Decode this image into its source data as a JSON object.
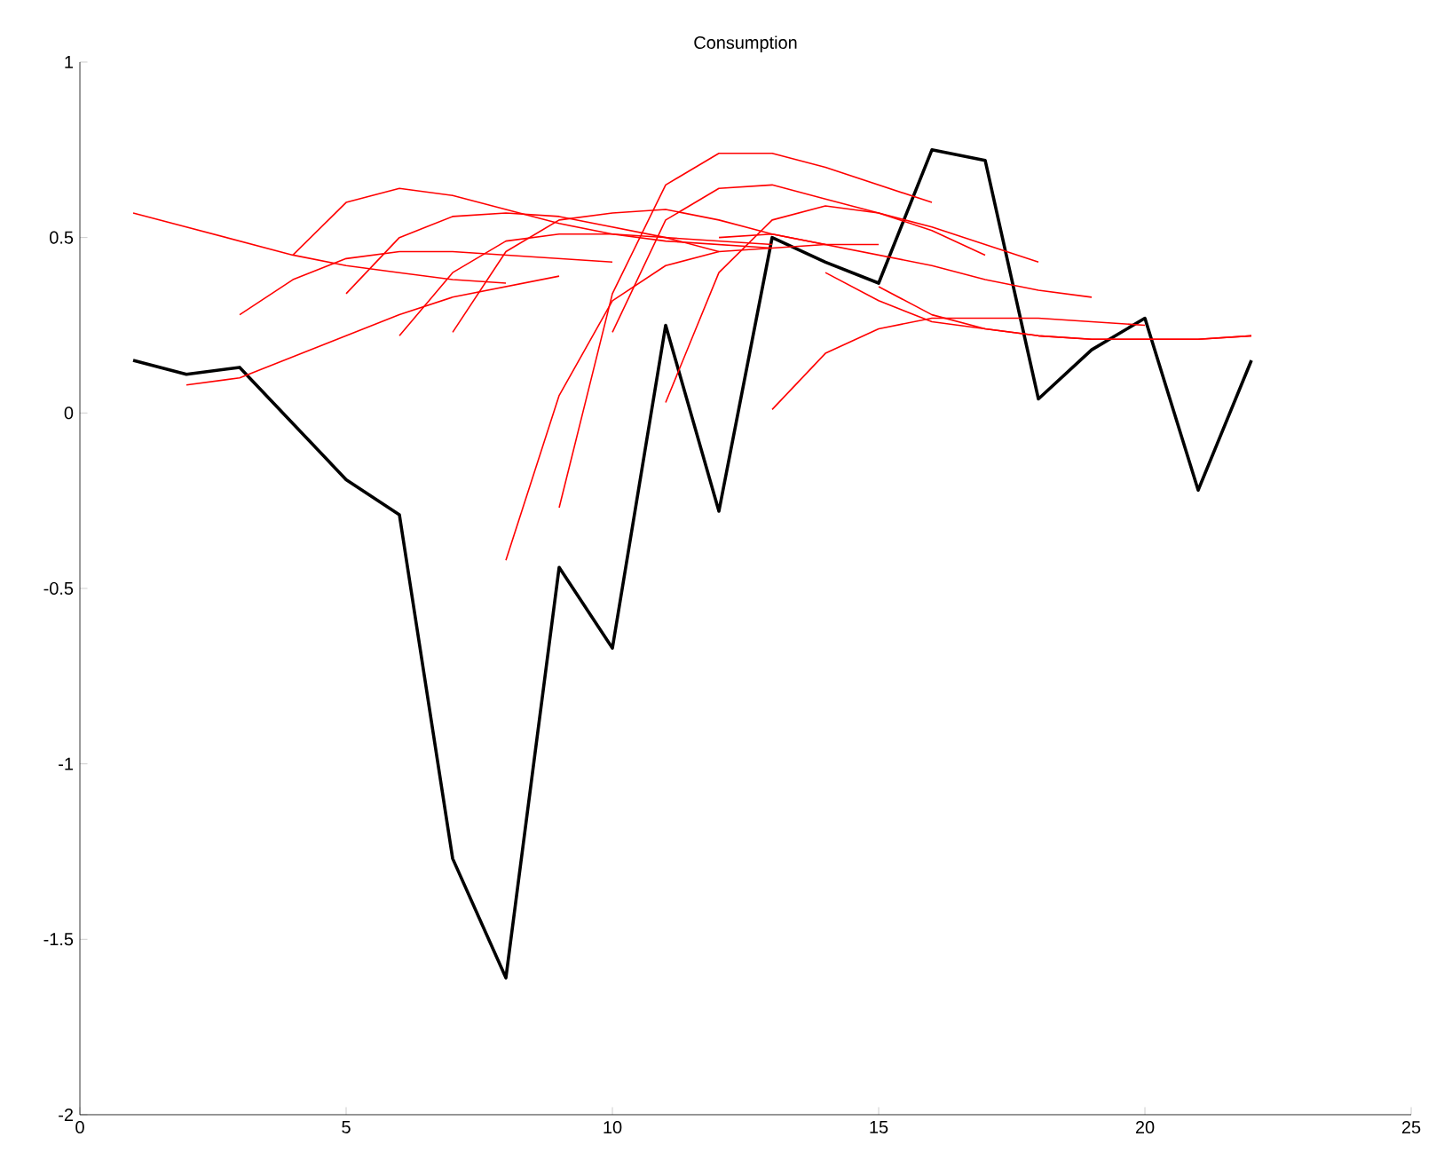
{
  "chart_data": {
    "type": "line",
    "title": "Consumption",
    "xlim": [
      0,
      25
    ],
    "xticks": [
      0,
      5,
      10,
      15,
      20,
      25
    ],
    "ylim": [
      -2,
      1
    ],
    "yticks": [
      -2,
      -1.5,
      -1,
      -0.5,
      0,
      0.5,
      1
    ],
    "series": [
      {
        "color": "#000000",
        "x": [
          1,
          2,
          3,
          4,
          5,
          6,
          7,
          8,
          9,
          10,
          11,
          12,
          13,
          14,
          15,
          16,
          17,
          18,
          19,
          20,
          21,
          22
        ],
        "values": [
          0.15,
          0.11,
          0.13,
          -0.03,
          -0.19,
          -0.29,
          -1.27,
          -1.61,
          -0.44,
          -0.67,
          0.25,
          -0.28,
          0.5,
          0.43,
          0.37,
          0.75,
          0.72,
          0.04,
          0.18,
          0.27,
          -0.22,
          0.15
        ]
      },
      {
        "color": "#ff0000",
        "x": [
          1,
          2,
          3,
          4,
          5,
          6,
          7,
          8
        ],
        "values": [
          0.57,
          0.53,
          0.49,
          0.45,
          0.42,
          0.4,
          0.38,
          0.37
        ]
      },
      {
        "color": "#ff0000",
        "x": [
          2,
          3,
          4,
          5,
          6,
          7,
          8,
          9
        ],
        "values": [
          0.08,
          0.1,
          0.16,
          0.22,
          0.28,
          0.33,
          0.36,
          0.39
        ]
      },
      {
        "color": "#ff0000",
        "x": [
          3,
          4,
          5,
          6,
          7,
          8,
          9,
          10
        ],
        "values": [
          0.28,
          0.38,
          0.44,
          0.46,
          0.46,
          0.45,
          0.44,
          0.43
        ]
      },
      {
        "color": "#ff0000",
        "x": [
          4,
          5,
          6,
          7,
          8,
          9,
          10,
          11,
          12,
          13
        ],
        "values": [
          0.45,
          0.6,
          0.64,
          0.62,
          0.58,
          0.54,
          0.51,
          0.49,
          0.48,
          0.47
        ]
      },
      {
        "color": "#ff0000",
        "x": [
          5,
          6,
          7,
          8,
          9,
          10,
          11,
          12
        ],
        "values": [
          0.34,
          0.5,
          0.56,
          0.57,
          0.56,
          0.53,
          0.5,
          0.46
        ]
      },
      {
        "color": "#ff0000",
        "x": [
          6,
          7,
          8,
          9,
          10,
          11,
          12,
          13
        ],
        "values": [
          0.22,
          0.4,
          0.49,
          0.51,
          0.51,
          0.5,
          0.49,
          0.48
        ]
      },
      {
        "color": "#ff0000",
        "x": [
          7,
          8,
          9,
          10,
          11,
          12,
          13,
          14
        ],
        "values": [
          0.23,
          0.46,
          0.55,
          0.57,
          0.58,
          0.55,
          0.51,
          0.48
        ]
      },
      {
        "color": "#ff0000",
        "x": [
          8,
          9,
          10,
          11,
          12,
          13,
          14,
          15
        ],
        "values": [
          -0.42,
          0.05,
          0.32,
          0.42,
          0.46,
          0.47,
          0.48,
          0.48
        ]
      },
      {
        "color": "#ff0000",
        "x": [
          9,
          10,
          11,
          12,
          13,
          14,
          15,
          16
        ],
        "values": [
          -0.27,
          0.34,
          0.65,
          0.74,
          0.74,
          0.7,
          0.65,
          0.6
        ]
      },
      {
        "color": "#ff0000",
        "x": [
          10,
          11,
          12,
          13,
          14,
          15,
          16,
          17
        ],
        "values": [
          0.23,
          0.55,
          0.64,
          0.65,
          0.61,
          0.57,
          0.52,
          0.45
        ]
      },
      {
        "color": "#ff0000",
        "x": [
          11,
          12,
          13,
          14,
          15,
          16,
          17,
          18
        ],
        "values": [
          0.03,
          0.4,
          0.55,
          0.59,
          0.57,
          0.53,
          0.48,
          0.43
        ]
      },
      {
        "color": "#ff0000",
        "x": [
          12,
          13,
          14,
          15,
          16,
          17,
          18,
          19
        ],
        "values": [
          0.5,
          0.51,
          0.48,
          0.45,
          0.42,
          0.38,
          0.35,
          0.33
        ]
      },
      {
        "color": "#ff0000",
        "x": [
          13,
          14,
          15,
          16,
          17,
          18,
          19,
          20
        ],
        "values": [
          0.01,
          0.17,
          0.24,
          0.27,
          0.27,
          0.27,
          0.26,
          0.25
        ]
      },
      {
        "color": "#ff0000",
        "x": [
          14,
          15,
          16,
          17,
          18,
          19,
          20,
          21,
          22
        ],
        "values": [
          0.4,
          0.32,
          0.26,
          0.24,
          0.22,
          0.21,
          0.21,
          0.21,
          0.22
        ]
      },
      {
        "color": "#ff0000",
        "x": [
          15,
          16,
          17,
          18,
          19,
          20,
          21,
          22
        ],
        "values": [
          0.36,
          0.28,
          0.24,
          0.22,
          0.21,
          0.21,
          0.21,
          0.22
        ]
      }
    ]
  }
}
